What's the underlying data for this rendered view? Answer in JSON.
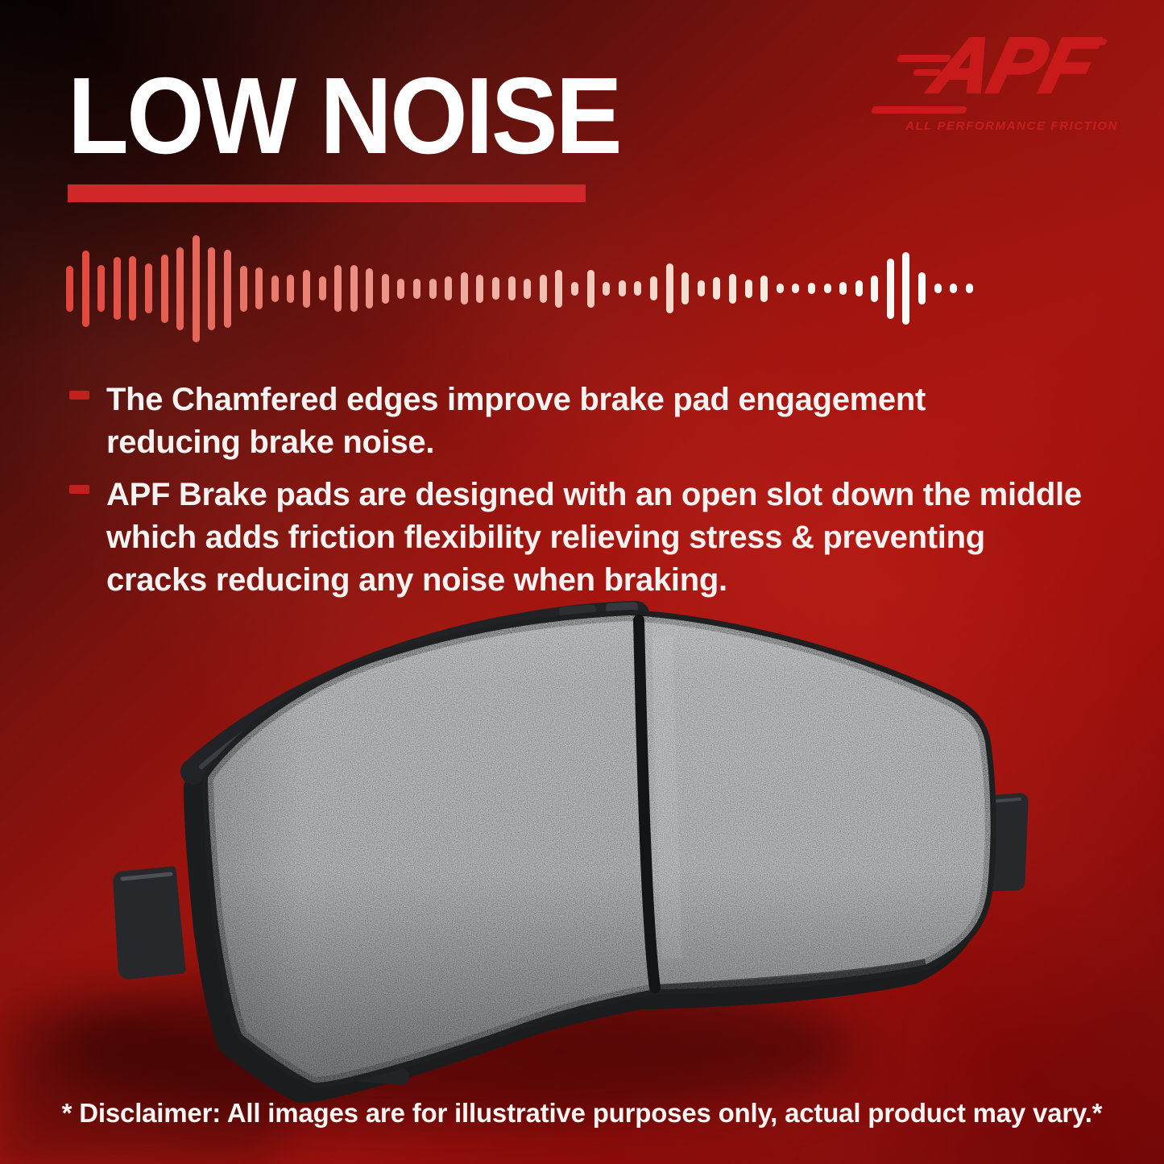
{
  "header": {
    "title": "LOW NOISE"
  },
  "logo": {
    "brand": "APF",
    "tagline": "ALL PERFORMANCE FRICTION"
  },
  "bullets": [
    {
      "lines": "The Chamfered edges improve brake pad engagement\nreducing brake noise."
    },
    {
      "lines": "APF Brake pads are designed with an open slot down the middle\nwhich adds friction flexibility relieving stress & preventing\ncracks reducing any noise when braking."
    }
  ],
  "disclaimer": "* Disclaimer: All images are for illustrative purposes only, actual product may vary.*",
  "colors": {
    "title_text": "#ffffff",
    "accent_bar_red": "#d0282a",
    "logo_red": "#c81a1a",
    "tagline_red": "#c41e1e",
    "bullet_marker_red": "#c2201d",
    "background_bright_red": "#a21511",
    "background_dark_corner": "#1d0705",
    "pad_gray": "#8e9193",
    "pad_plate_dark": "#1b1c1e"
  },
  "wave": {
    "bars": [
      [
        57,
        "#e2453a"
      ],
      [
        95,
        "#e24a3e"
      ],
      [
        58,
        "#e34e42"
      ],
      [
        78,
        "#e35246"
      ],
      [
        80,
        "#e4564a"
      ],
      [
        62,
        "#e45a4e"
      ],
      [
        85,
        "#e55e52"
      ],
      [
        103,
        "#e56256"
      ],
      [
        133,
        "#e6665a"
      ],
      [
        103,
        "#e66a5e"
      ],
      [
        97,
        "#e76e62"
      ],
      [
        57,
        "#e77266"
      ],
      [
        52,
        "#e8766a"
      ],
      [
        33,
        "#e87a6e"
      ],
      [
        35,
        "#e97e72"
      ],
      [
        47,
        "#e98276"
      ],
      [
        30,
        "#ea867a"
      ],
      [
        58,
        "#ea8a7e"
      ],
      [
        58,
        "#eb8e82"
      ],
      [
        50,
        "#eb9286"
      ],
      [
        37,
        "#ec968a"
      ],
      [
        25,
        "#ec9a8e"
      ],
      [
        25,
        "#ed9e92"
      ],
      [
        25,
        "#eda296"
      ],
      [
        30,
        "#eea69a"
      ],
      [
        40,
        "#eeaa9e"
      ],
      [
        35,
        "#efaea2"
      ],
      [
        28,
        "#efb2a6"
      ],
      [
        30,
        "#f0b6aa"
      ],
      [
        25,
        "#f0baae"
      ],
      [
        35,
        "#f1beb2"
      ],
      [
        47,
        "#f1c2b6"
      ],
      [
        17,
        "#f2c6ba"
      ],
      [
        47,
        "#f2cabd"
      ],
      [
        17,
        "#f3cdc0"
      ],
      [
        20,
        "#f3d0c4"
      ],
      [
        18,
        "#f4d3c7"
      ],
      [
        30,
        "#f4d6ca"
      ],
      [
        62,
        "#f5d9cd"
      ],
      [
        40,
        "#f5dcd0"
      ],
      [
        20,
        "#f6dfd3"
      ],
      [
        28,
        "#f6e2d6"
      ],
      [
        37,
        "#f7e5d9"
      ],
      [
        23,
        "#f7e7dc"
      ],
      [
        33,
        "#f8eadf"
      ],
      [
        12,
        "#f8ece2"
      ],
      [
        12,
        "#f9eee5"
      ],
      [
        14,
        "#f9f0e8"
      ],
      [
        12,
        "#faf2ea"
      ],
      [
        16,
        "#faf4ed"
      ],
      [
        20,
        "#fbf6f0"
      ],
      [
        33,
        "#fbf8f2"
      ],
      [
        75,
        "#fcf9f4"
      ],
      [
        90,
        "#fdfbf7"
      ],
      [
        40,
        "#fdfcf9"
      ],
      [
        12,
        "#fefdfb"
      ],
      [
        12,
        "#fefefd"
      ],
      [
        12,
        "#ffffff"
      ]
    ]
  }
}
